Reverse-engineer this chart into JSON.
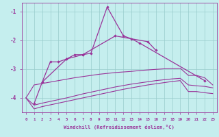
{
  "xlabel": "Windchill (Refroidissement éolien,°C)",
  "xlim": [
    -0.5,
    23.5
  ],
  "ylim": [
    -4.5,
    -0.7
  ],
  "yticks": [
    -4,
    -3,
    -2,
    -1
  ],
  "background_color": "#c5eeee",
  "grid_color": "#99cccc",
  "line_color": "#993399",
  "line1_x": [
    1,
    2,
    3,
    4,
    5,
    6,
    7,
    8,
    10,
    12,
    13,
    14,
    22
  ],
  "line1_y": [
    -4.2,
    -3.45,
    -2.75,
    -2.75,
    -2.65,
    -2.5,
    -2.5,
    -2.45,
    -0.85,
    -1.85,
    -1.95,
    -2.1,
    -3.4
  ],
  "line2_x": [
    2,
    5,
    7,
    11,
    15,
    16
  ],
  "line2_y": [
    -3.45,
    -2.65,
    -2.5,
    -1.85,
    -2.05,
    -2.35
  ],
  "line3_x": [
    0,
    1,
    2,
    3,
    4,
    5,
    6,
    7,
    8,
    9,
    10,
    11,
    12,
    13,
    14,
    15,
    16,
    17,
    18,
    19,
    20,
    21,
    22,
    23
  ],
  "line3_y": [
    -4.0,
    -3.55,
    -3.5,
    -3.45,
    -3.4,
    -3.35,
    -3.3,
    -3.26,
    -3.22,
    -3.18,
    -3.15,
    -3.12,
    -3.1,
    -3.08,
    -3.05,
    -3.03,
    -3.01,
    -2.99,
    -2.98,
    -2.97,
    -3.22,
    -3.22,
    -3.3,
    -3.55
  ],
  "line4_x": [
    0,
    1,
    2,
    3,
    4,
    5,
    6,
    7,
    8,
    9,
    10,
    11,
    12,
    13,
    14,
    15,
    16,
    17,
    18,
    19,
    20,
    21,
    22,
    23
  ],
  "line4_y": [
    -4.0,
    -4.25,
    -4.18,
    -4.12,
    -4.06,
    -4.0,
    -3.93,
    -3.86,
    -3.8,
    -3.74,
    -3.68,
    -3.62,
    -3.57,
    -3.52,
    -3.48,
    -3.44,
    -3.4,
    -3.37,
    -3.34,
    -3.32,
    -3.55,
    -3.58,
    -3.6,
    -3.65
  ],
  "line5_x": [
    0,
    1,
    2,
    3,
    4,
    5,
    6,
    7,
    8,
    9,
    10,
    11,
    12,
    13,
    14,
    15,
    16,
    17,
    18,
    19,
    20,
    21,
    22,
    23
  ],
  "line5_y": [
    -4.0,
    -4.38,
    -4.3,
    -4.24,
    -4.18,
    -4.12,
    -4.06,
    -4.0,
    -3.94,
    -3.88,
    -3.82,
    -3.76,
    -3.7,
    -3.65,
    -3.6,
    -3.55,
    -3.51,
    -3.47,
    -3.43,
    -3.4,
    -3.78,
    -3.78,
    -3.82,
    -3.85
  ]
}
